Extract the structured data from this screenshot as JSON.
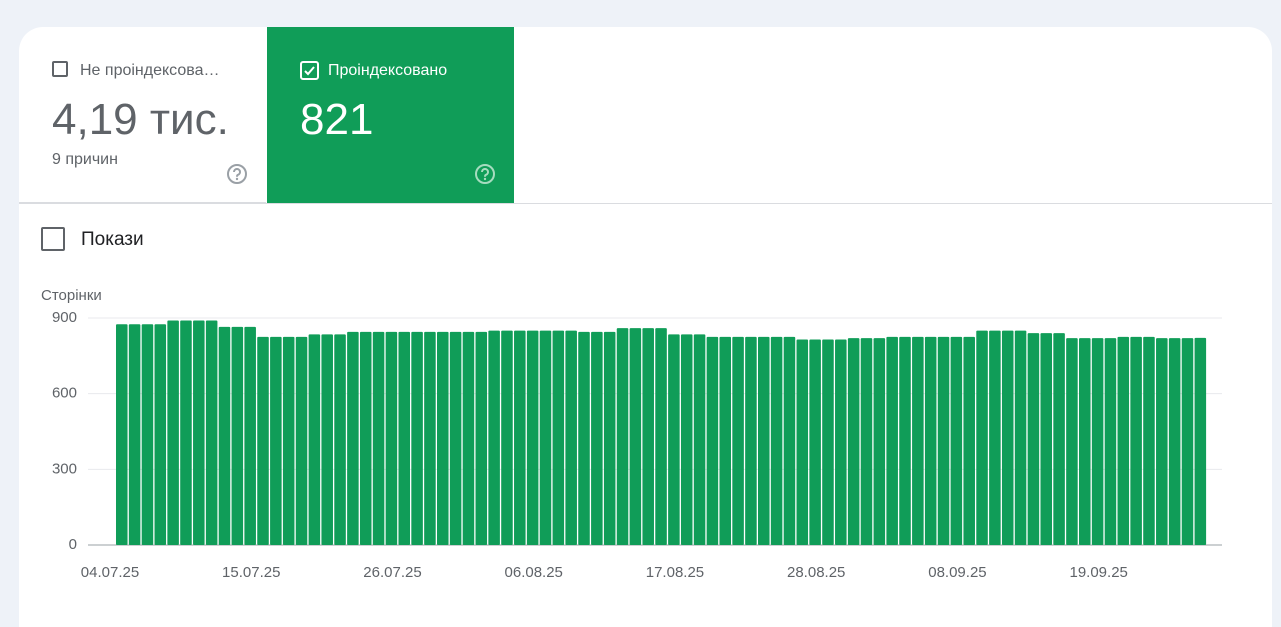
{
  "tabs": [
    {
      "label": "Не проіндексова…",
      "value": "4,19 тис.",
      "sub": "9 причин"
    },
    {
      "label": "Проіндексовано",
      "value": "821"
    }
  ],
  "toggle": {
    "label": "Покази"
  },
  "chart_data": {
    "type": "bar",
    "y_label": "Сторінки",
    "color": "#109d58",
    "grid": true,
    "ylim": [
      0,
      900
    ],
    "yticks": [
      0,
      300,
      600,
      900
    ],
    "categories": [
      "04.07.25",
      null,
      null,
      null,
      null,
      null,
      null,
      null,
      null,
      null,
      null,
      "15.07.25",
      null,
      null,
      null,
      null,
      null,
      null,
      null,
      null,
      null,
      null,
      "26.07.25",
      null,
      null,
      null,
      null,
      null,
      null,
      null,
      null,
      null,
      null,
      "06.08.25",
      null,
      null,
      null,
      null,
      null,
      null,
      null,
      null,
      null,
      null,
      "17.08.25",
      null,
      null,
      null,
      null,
      null,
      null,
      null,
      null,
      null,
      null,
      "28.08.25",
      null,
      null,
      null,
      null,
      null,
      null,
      null,
      null,
      null,
      null,
      "08.09.25",
      null,
      null,
      null,
      null,
      null,
      null,
      null,
      null,
      null,
      null,
      "19.09.25",
      null,
      null,
      null,
      null,
      null,
      null,
      null
    ],
    "values": [
      875,
      875,
      875,
      875,
      890,
      890,
      890,
      890,
      865,
      865,
      865,
      825,
      825,
      825,
      825,
      835,
      835,
      835,
      845,
      845,
      845,
      845,
      845,
      845,
      845,
      845,
      845,
      845,
      845,
      850,
      850,
      850,
      850,
      850,
      850,
      850,
      845,
      845,
      845,
      860,
      860,
      860,
      860,
      835,
      835,
      835,
      825,
      825,
      825,
      825,
      825,
      825,
      825,
      815,
      815,
      815,
      815,
      820,
      820,
      820,
      825,
      825,
      825,
      825,
      825,
      825,
      825,
      850,
      850,
      850,
      850,
      840,
      840,
      840,
      820,
      820,
      820,
      820,
      825,
      825,
      825,
      820,
      820,
      820,
      821
    ]
  }
}
